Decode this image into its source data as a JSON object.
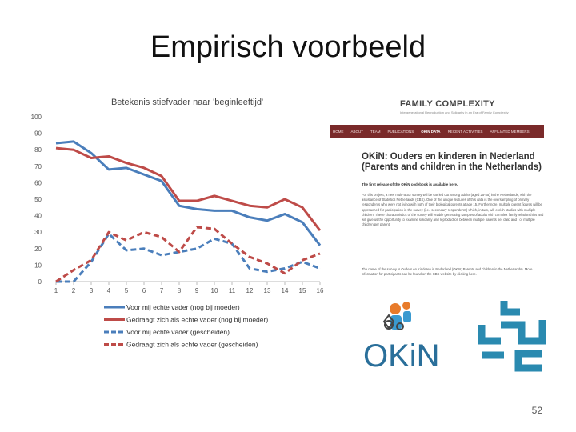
{
  "slide": {
    "title": "Empirisch voorbeeld",
    "page_number": "52"
  },
  "chart_data": {
    "type": "line",
    "title": "Betekenis stiefvader naar 'beginleeftijd'",
    "xlabel": "",
    "ylabel": "",
    "x": [
      1,
      2,
      3,
      4,
      5,
      6,
      7,
      8,
      9,
      10,
      11,
      12,
      13,
      14,
      15,
      16
    ],
    "ylim": [
      0,
      100
    ],
    "yticks": [
      0,
      10,
      20,
      30,
      40,
      50,
      60,
      70,
      80,
      90,
      100
    ],
    "legend_position": "bottom-left",
    "series": [
      {
        "name": "Voor mij echte vader (nog bij moeder)",
        "color": "#4a7ebb",
        "dashed": false,
        "values": [
          84,
          85,
          78,
          68,
          69,
          65,
          61,
          46,
          44,
          43,
          43,
          39,
          37,
          41,
          36,
          22
        ]
      },
      {
        "name": "Gedraagt zich als echte vader (nog bij moeder)",
        "color": "#be4b48",
        "dashed": false,
        "values": [
          81,
          80,
          75,
          76,
          72,
          69,
          64,
          49,
          49,
          52,
          49,
          46,
          45,
          50,
          45,
          31
        ]
      },
      {
        "name": "Voor mij echte vader (gescheiden)",
        "color": "#4a7ebb",
        "dashed": true,
        "values": [
          0,
          0,
          12,
          29,
          19,
          20,
          16,
          18,
          20,
          26,
          23,
          8,
          6,
          8,
          12,
          8
        ]
      },
      {
        "name": "Gedraagt zich als echte vader (gescheiden)",
        "color": "#be4b48",
        "dashed": true,
        "values": [
          0,
          7,
          13,
          30,
          25,
          30,
          27,
          18,
          33,
          32,
          23,
          15,
          11,
          5,
          13,
          17
        ]
      }
    ]
  },
  "website": {
    "brand": "FAMILY COMPLEXITY",
    "tagline": "Intergenerational Reproduction and Solidarity in an Era of Family Complexity",
    "nav": [
      "HOME",
      "ABOUT",
      "TEAM",
      "PUBLICATIONS",
      "OKIN DATA",
      "RECENT ACTIVITIES",
      "AFFILIATED MEMBERS"
    ],
    "nav_active": "OKIN DATA",
    "heading_line1": "OKiN: Ouders en kinderen in Nederland",
    "heading_line2": "(Parents and children in the Netherlands)",
    "release_line": "The first release of the OKiN codebook is available here.",
    "para1": "For this project, a new multi-actor survey will be carried out among adults (aged 25-45) in the Netherlands, with the assistance of Statistics Netherlands (CBS). One of the unique features of this data is the oversampling of primary respondents who were not living with both of their biological parents at age 15. Furthermore, multiple parent figures will be approached for participation in the survey (i.e., secondary respondents) which, in turn, will enrich studies with multiple children. These characteristics of the survey will enable generating samples of adults with complex family relationships and will give us the opportunity to examine solidarity and reproduction between multiple parents per child and / or multiple children per parent.",
    "para2": "The name of the survey is Ouders en Kinderen in Nederland (OKiN; Parents and children in the Netherlands). More information for participants can be found on the CBS website by clicking here."
  },
  "logos": {
    "okin_text": "OKiN",
    "okin_color": "#2a6f9a",
    "cbs_color": "#2a8ab0"
  }
}
